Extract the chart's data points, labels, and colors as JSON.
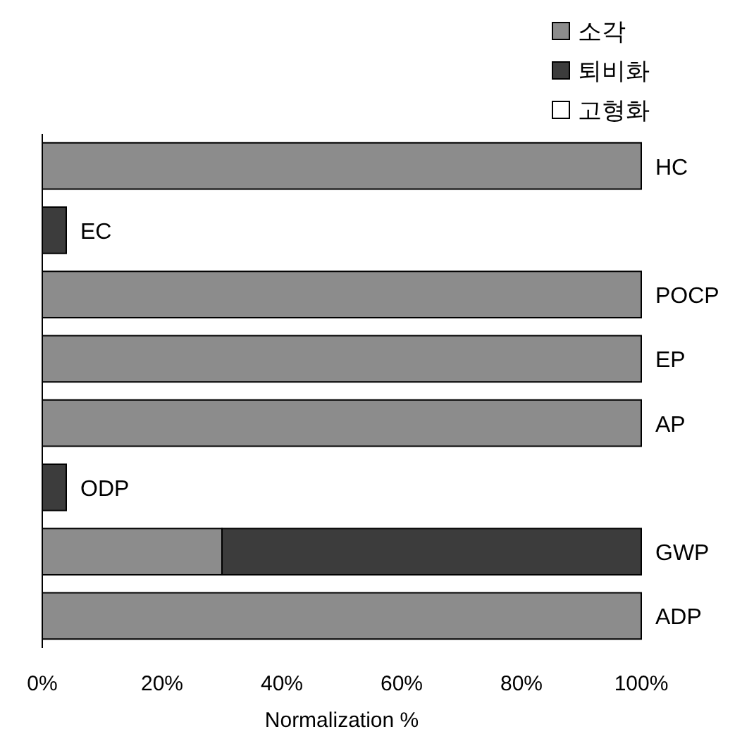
{
  "chart_data": {
    "type": "bar",
    "orientation": "horizontal",
    "stacked": true,
    "xlabel": "Normalization %",
    "legend": "top right",
    "categories": [
      "HC",
      "EC",
      "POCP",
      "EP",
      "AP",
      "ODP",
      "GWP",
      "ADP"
    ],
    "series": [
      {
        "name": "소각",
        "color": "#8c8c8c",
        "values": [
          100,
          0,
          100,
          100,
          100,
          0,
          30,
          100
        ]
      },
      {
        "name": "퇴비화",
        "color": "#3c3c3c",
        "values": [
          0,
          4,
          0,
          0,
          0,
          4,
          70,
          0
        ]
      },
      {
        "name": "고형화",
        "color": "#ffffff",
        "values": [
          0,
          0,
          0,
          0,
          0,
          0,
          0,
          0
        ]
      }
    ],
    "xlim": [
      0,
      100
    ],
    "xticks": [
      {
        "value": 0,
        "label": "0%"
      },
      {
        "value": 20,
        "label": "20%"
      },
      {
        "value": 40,
        "label": "40%"
      },
      {
        "value": 60,
        "label": "60%"
      },
      {
        "value": 80,
        "label": "80%"
      },
      {
        "value": 100,
        "label": "100%"
      }
    ]
  }
}
